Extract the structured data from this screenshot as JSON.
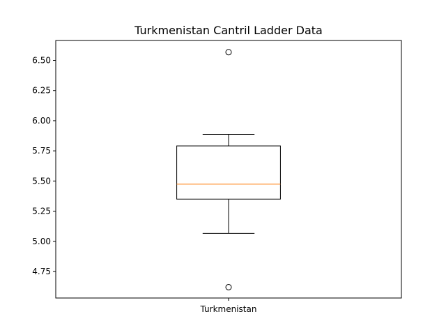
{
  "chart_data": {
    "type": "box",
    "title": "Turkmenistan Cantril Ladder Data",
    "xlabel": "",
    "ylabel": "",
    "categories": [
      "Turkmenistan"
    ],
    "boxes": [
      {
        "category": "Turkmenistan",
        "whisker_low": 5.066,
        "q1": 5.35,
        "median": 5.474,
        "q3": 5.791,
        "whisker_high": 5.887,
        "outliers": [
          6.568,
          4.62
        ]
      }
    ],
    "yticks": [
      "4.75",
      "5.00",
      "5.25",
      "5.50",
      "5.75",
      "6.00",
      "6.25",
      "6.50"
    ],
    "ylim": [
      4.53,
      6.665
    ],
    "grid": false,
    "colors": {
      "box": "#000000",
      "median": "#ff7f0e",
      "outlier": "#000000"
    }
  }
}
